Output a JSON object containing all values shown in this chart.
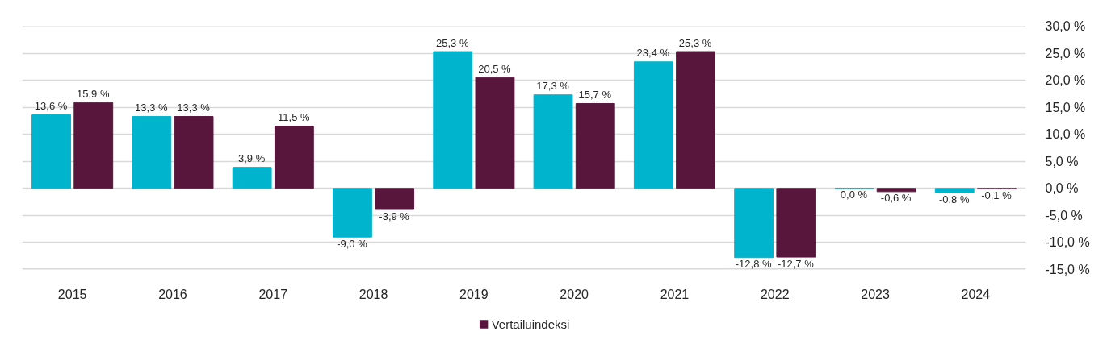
{
  "chart_data": {
    "type": "bar",
    "categories": [
      "2015",
      "2016",
      "2017",
      "2018",
      "2019",
      "2020",
      "2021",
      "2022",
      "2023",
      "2024"
    ],
    "series": [
      {
        "color": "#00b4cd",
        "values": [
          13.6,
          13.3,
          3.9,
          -9.0,
          25.3,
          17.3,
          23.4,
          -12.8,
          0.0,
          -0.8
        ],
        "value_labels": [
          "13,6 %",
          "13,3 %",
          "3,9 %",
          "-9,0 %",
          "25,3 %",
          "17,3 %",
          "23,4 %",
          "-12,8 %",
          "0,0 %",
          "-0,8 %"
        ]
      },
      {
        "name": "Vertailuindeksi",
        "color": "#58163c",
        "values": [
          15.9,
          13.3,
          11.5,
          -3.9,
          20.5,
          15.7,
          25.3,
          -12.7,
          -0.6,
          -0.1
        ],
        "value_labels": [
          "15,9 %",
          "13,3 %",
          "11,5 %",
          "-3,9 %",
          "20,5 %",
          "15,7 %",
          "25,3 %",
          "-12,7 %",
          "-0,6 %",
          "-0,1 %"
        ]
      }
    ],
    "ylim": [
      -15,
      30
    ],
    "yticks": [
      {
        "value": -15,
        "label": "-15,0 %"
      },
      {
        "value": -10,
        "label": "-10,0 %"
      },
      {
        "value": -5,
        "label": "-5,0 %"
      },
      {
        "value": 0,
        "label": "0,0 %"
      },
      {
        "value": 5,
        "label": "5,0 %"
      },
      {
        "value": 10,
        "label": "10,0 %"
      },
      {
        "value": 15,
        "label": "15,0 %"
      },
      {
        "value": 20,
        "label": "20,0 %"
      },
      {
        "value": 25,
        "label": "25,0 %"
      },
      {
        "value": 30,
        "label": "30,0 %"
      }
    ],
    "grid": "y",
    "legend": "bottom"
  }
}
